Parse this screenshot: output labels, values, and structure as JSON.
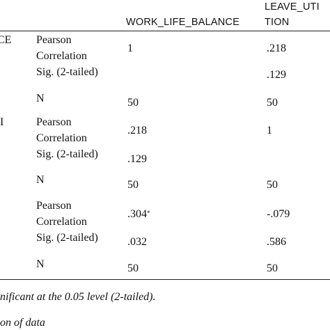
{
  "header": {
    "col_work_life_balance": "WORK_LIFE_BALANCE",
    "col_leave_line1": "LEAVE_UTI",
    "col_leave_line2": "TION"
  },
  "rows": [
    {
      "row_label": "CE",
      "pearson_line1": "Pearson",
      "pearson_line2": "Correlation",
      "sig": "Sig. (2-tailed)",
      "n": "N",
      "wlb": {
        "pearson": "1",
        "sig": "",
        "n": "50"
      },
      "leave": {
        "pearson": ".218",
        "sig": ".129",
        "n": "50"
      }
    },
    {
      "row_label": "I",
      "pearson_line1": "Pearson",
      "pearson_line2": "Correlation",
      "sig": "Sig. (2-tailed)",
      "n": "N",
      "wlb": {
        "pearson": ".218",
        "sig": ".129",
        "n": "50"
      },
      "leave": {
        "pearson": "1",
        "sig": "",
        "n": "50"
      }
    },
    {
      "row_label": "",
      "pearson_line1": "Pearson",
      "pearson_line2": "Correlation",
      "sig": "Sig. (2-tailed)",
      "n": "N",
      "wlb": {
        "pearson": ".304",
        "pearson_mark": "*",
        "sig": ".032",
        "n": "50"
      },
      "leave": {
        "pearson": "-.079",
        "sig": ".586",
        "n": "50"
      }
    }
  ],
  "footnotes": {
    "significance": "nificant at the 0.05 level (2-tailed).",
    "source": "on of data"
  }
}
